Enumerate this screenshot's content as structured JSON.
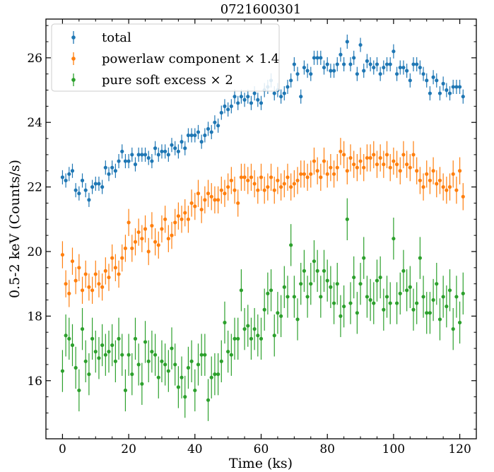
{
  "chart_data": {
    "type": "scatter",
    "title": "0721600301",
    "xlabel": "Time (ks)",
    "ylabel": "0.5-2 keV (Counts/s)",
    "xlim": [
      -5,
      125
    ],
    "ylim": [
      14.2,
      27.2
    ],
    "xticks": [
      0,
      20,
      40,
      60,
      80,
      100,
      120
    ],
    "yticks": [
      16,
      18,
      20,
      22,
      24,
      26
    ],
    "grid": false,
    "legend_position": "top-left",
    "series": [
      {
        "name": "total",
        "color": "#1f77b4",
        "err": 0.22,
        "x": [
          0,
          1,
          2,
          3,
          4,
          5,
          6,
          7,
          8,
          9,
          10,
          11,
          12,
          13,
          14,
          15,
          16,
          17,
          18,
          19,
          20,
          21,
          22,
          23,
          24,
          25,
          26,
          27,
          28,
          29,
          30,
          31,
          32,
          33,
          34,
          35,
          36,
          37,
          38,
          39,
          40,
          41,
          42,
          43,
          44,
          45,
          46,
          47,
          48,
          49,
          50,
          51,
          52,
          53,
          54,
          55,
          56,
          57,
          58,
          59,
          60,
          61,
          62,
          63,
          64,
          65,
          66,
          67,
          68,
          69,
          70,
          71,
          72,
          73,
          74,
          75,
          76,
          77,
          78,
          79,
          80,
          81,
          82,
          83,
          84,
          85,
          86,
          87,
          88,
          89,
          90,
          91,
          92,
          93,
          94,
          95,
          96,
          97,
          98,
          99,
          100,
          101,
          102,
          103,
          104,
          105,
          106,
          107,
          108,
          109,
          110,
          111,
          112,
          113,
          114,
          115,
          116,
          117,
          118,
          119,
          120,
          121
        ],
        "y": [
          22.3,
          22.2,
          22.4,
          22.5,
          21.9,
          21.8,
          22.2,
          21.9,
          21.6,
          22.0,
          22.1,
          22.1,
          22.0,
          22.6,
          22.4,
          22.6,
          22.5,
          22.8,
          23.1,
          22.8,
          22.8,
          23.0,
          22.7,
          23.0,
          23.0,
          23.0,
          22.9,
          22.8,
          23.2,
          23.0,
          23.1,
          23.1,
          23.0,
          23.3,
          23.2,
          23.1,
          23.4,
          23.2,
          23.6,
          23.6,
          23.6,
          23.7,
          23.4,
          23.6,
          23.8,
          23.7,
          24.0,
          23.9,
          24.3,
          24.5,
          24.4,
          24.5,
          24.8,
          24.6,
          24.8,
          24.7,
          24.8,
          24.6,
          24.9,
          24.7,
          24.6,
          25.0,
          25.1,
          25.3,
          24.9,
          25.0,
          24.8,
          24.9,
          25.1,
          25.3,
          25.8,
          25.5,
          24.8,
          25.7,
          25.6,
          25.5,
          26.0,
          26.0,
          26.0,
          25.7,
          25.8,
          25.6,
          25.6,
          25.8,
          26.1,
          25.8,
          26.5,
          25.8,
          26.0,
          25.5,
          26.4,
          25.6,
          25.9,
          25.8,
          25.7,
          25.8,
          25.5,
          25.7,
          25.8,
          25.8,
          26.2,
          25.5,
          25.7,
          25.7,
          25.6,
          25.3,
          25.8,
          25.8,
          25.7,
          25.5,
          25.3,
          24.9,
          25.4,
          25.3,
          24.9,
          25.2,
          25.0,
          24.9,
          25.1,
          25.1,
          25.1,
          24.8
        ]
      },
      {
        "name": "powerlaw component × 1.4",
        "color": "#ff7f0e",
        "err": 0.42,
        "x": [
          0,
          1,
          2,
          3,
          4,
          5,
          6,
          7,
          8,
          9,
          10,
          11,
          12,
          13,
          14,
          15,
          16,
          17,
          18,
          19,
          20,
          21,
          22,
          23,
          24,
          25,
          26,
          27,
          28,
          29,
          30,
          31,
          32,
          33,
          34,
          35,
          36,
          37,
          38,
          39,
          40,
          41,
          42,
          43,
          44,
          45,
          46,
          47,
          48,
          49,
          50,
          51,
          52,
          53,
          54,
          55,
          56,
          57,
          58,
          59,
          60,
          61,
          62,
          63,
          64,
          65,
          66,
          67,
          68,
          69,
          70,
          71,
          72,
          73,
          74,
          75,
          76,
          77,
          78,
          79,
          80,
          81,
          82,
          83,
          84,
          85,
          86,
          87,
          88,
          89,
          90,
          91,
          92,
          93,
          94,
          95,
          96,
          97,
          98,
          99,
          100,
          101,
          102,
          103,
          104,
          105,
          106,
          107,
          108,
          109,
          110,
          111,
          112,
          113,
          114,
          115,
          116,
          117,
          118,
          119,
          120,
          121
        ],
        "y": [
          19.9,
          19.0,
          18.7,
          19.7,
          19.1,
          19.5,
          18.8,
          19.3,
          18.9,
          18.8,
          19.3,
          19.0,
          18.9,
          19.4,
          19.2,
          19.8,
          19.5,
          19.3,
          19.8,
          20.1,
          20.9,
          20.1,
          20.3,
          20.6,
          20.4,
          20.7,
          20.0,
          20.8,
          20.3,
          20.2,
          20.7,
          21.0,
          20.4,
          20.5,
          20.9,
          21.1,
          21.0,
          21.2,
          21.0,
          21.5,
          21.4,
          21.8,
          21.3,
          21.6,
          21.8,
          21.7,
          21.6,
          21.6,
          21.9,
          21.8,
          22.0,
          22.2,
          21.9,
          21.5,
          22.3,
          22.3,
          22.2,
          22.3,
          22.1,
          21.9,
          22.3,
          21.9,
          22.0,
          22.3,
          21.9,
          22.2,
          22.0,
          22.1,
          22.3,
          22.0,
          22.1,
          22.2,
          22.4,
          22.4,
          22.3,
          22.4,
          22.8,
          22.5,
          22.3,
          22.8,
          22.4,
          22.6,
          22.4,
          22.6,
          23.1,
          23.0,
          22.5,
          22.9,
          22.7,
          22.6,
          22.8,
          22.6,
          22.9,
          22.9,
          23.0,
          22.7,
          22.9,
          22.7,
          23.0,
          22.6,
          22.8,
          22.7,
          22.5,
          23.0,
          22.7,
          22.6,
          23.0,
          22.5,
          22.2,
          22.0,
          22.4,
          22.2,
          22.5,
          22.1,
          22.2,
          22.0,
          21.9,
          22.0,
          22.4,
          21.9,
          22.5,
          21.7
        ]
      },
      {
        "name": "pure soft excess × 2",
        "color": "#2ca02c",
        "err": 0.65,
        "x": [
          0,
          1,
          2,
          3,
          4,
          5,
          6,
          7,
          8,
          9,
          10,
          11,
          12,
          13,
          14,
          15,
          16,
          17,
          18,
          19,
          20,
          21,
          22,
          23,
          24,
          25,
          26,
          27,
          28,
          29,
          30,
          31,
          32,
          33,
          34,
          35,
          36,
          37,
          38,
          39,
          40,
          41,
          42,
          43,
          44,
          45,
          46,
          47,
          48,
          49,
          50,
          51,
          52,
          53,
          54,
          55,
          56,
          57,
          58,
          59,
          60,
          61,
          62,
          63,
          64,
          65,
          66,
          67,
          68,
          69,
          70,
          71,
          72,
          73,
          74,
          75,
          76,
          77,
          78,
          79,
          80,
          81,
          82,
          83,
          84,
          85,
          86,
          87,
          88,
          89,
          90,
          91,
          92,
          93,
          94,
          95,
          96,
          97,
          98,
          99,
          100,
          101,
          102,
          103,
          104,
          105,
          106,
          107,
          108,
          109,
          110,
          111,
          112,
          113,
          114,
          115,
          116,
          117,
          118,
          119,
          120,
          121
        ],
        "y": [
          16.3,
          17.4,
          17.3,
          17.1,
          16.4,
          15.7,
          17.6,
          16.6,
          16.2,
          17.3,
          16.9,
          16.7,
          17.1,
          16.8,
          16.9,
          17.1,
          16.6,
          17.3,
          16.8,
          15.7,
          16.8,
          16.2,
          17.3,
          16.5,
          15.9,
          17.2,
          16.6,
          16.9,
          16.8,
          16.1,
          16.6,
          16.5,
          16.3,
          17.0,
          16.5,
          15.8,
          16.1,
          15.5,
          16.4,
          16.6,
          15.7,
          16.5,
          16.8,
          16.8,
          15.4,
          16.1,
          16.2,
          16.2,
          16.6,
          17.8,
          16.9,
          16.8,
          17.3,
          17.3,
          18.8,
          17.6,
          17.7,
          17.3,
          17.6,
          17.4,
          17.3,
          18.2,
          18.7,
          18.8,
          17.4,
          18.1,
          18.0,
          18.9,
          18.6,
          20.2,
          18.6,
          17.9,
          19.0,
          19.4,
          18.6,
          19.0,
          19.7,
          19.4,
          18.6,
          19.4,
          19.1,
          18.9,
          18.4,
          19.0,
          18.0,
          18.3,
          21.0,
          18.4,
          19.2,
          18.1,
          19.0,
          19.8,
          18.6,
          18.5,
          18.4,
          19.1,
          19.2,
          18.2,
          18.6,
          18.4,
          20.4,
          18.4,
          18.7,
          19.4,
          18.8,
          18.9,
          18.2,
          18.4,
          19.8,
          18.6,
          18.1,
          18.1,
          18.5,
          19.0,
          17.9,
          18.6,
          18.3,
          18.8,
          17.6,
          18.6,
          17.8,
          18.7
        ]
      }
    ]
  }
}
